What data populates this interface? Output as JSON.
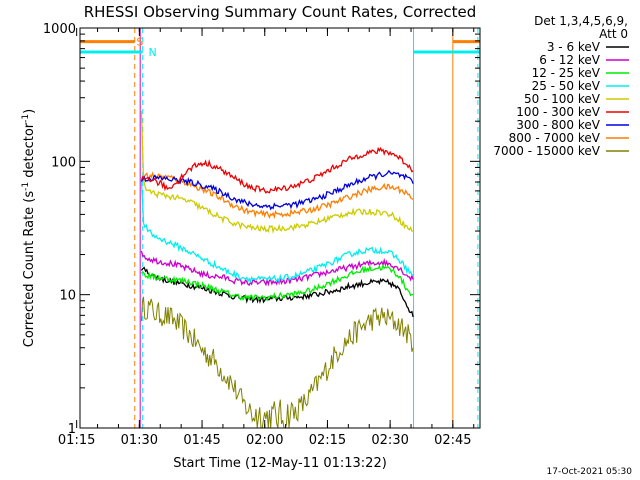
{
  "chart_data": {
    "type": "line",
    "title": "RHESSI Observing Summary Count Rates, Corrected",
    "xlabel": "Start Time (12-May-11 01:13:22)",
    "ylabel": "Corrected Count Rate (s",
    "ylabel_sup": "-1",
    "ylabel_tail": " detector",
    "ylabel_sup2": "-1",
    "ylabel_end": ")",
    "y_scale": "log",
    "ylim": [
      1,
      1000
    ],
    "xlim_minutes": [
      75.8,
      171.5
    ],
    "x_ticks": [
      {
        "label": "01:15",
        "min": 75
      },
      {
        "label": "01:30",
        "min": 90
      },
      {
        "label": "01:45",
        "min": 105
      },
      {
        "label": "02:00",
        "min": 120
      },
      {
        "label": "02:15",
        "min": 135
      },
      {
        "label": "02:30",
        "min": 150
      },
      {
        "label": "02:45",
        "min": 165
      }
    ],
    "y_ticks": [
      {
        "label": "1",
        "value": 1
      },
      {
        "label": "10",
        "value": 10
      },
      {
        "label": "100",
        "value": 100
      },
      {
        "label": "1000",
        "value": 1000
      }
    ],
    "legend_header": [
      "Det 1,3,4,5,6,9,",
      "Att 0"
    ],
    "legend_position": "right",
    "series": [
      {
        "name": "3 - 6 keV",
        "color": "#000000",
        "x": [
          90.5,
          91.5,
          94,
          98,
          102,
          106,
          110,
          113,
          116,
          120,
          124,
          128,
          132,
          136,
          140,
          144,
          148,
          150,
          152,
          154,
          155.5
        ],
        "y": [
          16,
          15,
          13.5,
          12.5,
          11.8,
          11,
          10.2,
          9.6,
          9.3,
          9.2,
          9.4,
          9.6,
          10,
          10.6,
          11.5,
          12.2,
          12.5,
          12.2,
          11,
          8.5,
          6.8
        ]
      },
      {
        "name": "6 - 12 keV",
        "color": "#cc00cc",
        "x": [
          90.5,
          91.5,
          94,
          98,
          102,
          106,
          110,
          113,
          116,
          120,
          124,
          128,
          132,
          136,
          140,
          144,
          148,
          150,
          152,
          154,
          155.5
        ],
        "y": [
          21,
          19,
          18,
          17,
          15.5,
          14,
          13.5,
          12.7,
          12.3,
          12.3,
          12.5,
          13,
          14,
          15,
          16,
          17,
          17.5,
          17,
          16,
          14,
          13
        ]
      },
      {
        "name": "12 - 25 keV",
        "color": "#00ee00",
        "x": [
          90.5,
          91.5,
          94,
          98,
          102,
          106,
          110,
          113,
          116,
          120,
          124,
          128,
          132,
          136,
          140,
          144,
          148,
          150,
          152,
          154,
          155.5
        ],
        "y": [
          15,
          14,
          13.5,
          13,
          12.5,
          11.5,
          10.5,
          9.8,
          9.5,
          9.5,
          9.8,
          10.2,
          11,
          12.5,
          14,
          15.5,
          16,
          15.5,
          14,
          11,
          10
        ]
      },
      {
        "name": "25 - 50 keV",
        "color": "#00eeee",
        "x": [
          90.5,
          91,
          92,
          94,
          98,
          102,
          106,
          110,
          113,
          116,
          120,
          124,
          128,
          132,
          136,
          140,
          144,
          148,
          150,
          152,
          154,
          155.5
        ],
        "y": [
          70,
          35,
          30,
          27,
          24,
          21,
          18,
          15.5,
          14,
          13.2,
          13,
          13.2,
          14,
          15.5,
          17.5,
          20,
          21.5,
          21.5,
          20.5,
          18.5,
          15.5,
          14
        ]
      },
      {
        "name": "50 - 100 keV",
        "color": "#cccc00",
        "x": [
          90.5,
          91,
          92,
          94,
          98,
          102,
          106,
          110,
          113,
          116,
          120,
          124,
          128,
          132,
          136,
          140,
          144,
          148,
          150,
          152,
          154,
          155.5
        ],
        "y": [
          240,
          70,
          60,
          57,
          54,
          50,
          43,
          37,
          34,
          32,
          31,
          31.5,
          32.5,
          34.5,
          38,
          41,
          42,
          41.5,
          40,
          37,
          32,
          30
        ]
      },
      {
        "name": "100 - 300 keV",
        "color": "#ee0000",
        "x": [
          90.5,
          91.5,
          93,
          95,
          97,
          99,
          101,
          103,
          105,
          107,
          110,
          113,
          116,
          120,
          124,
          128,
          132,
          136,
          140,
          144,
          148,
          150,
          152,
          154,
          155.5
        ],
        "y": [
          72,
          75,
          73,
          68,
          62,
          70,
          82,
          92,
          97,
          95,
          85,
          74,
          65,
          60,
          62,
          67,
          75,
          88,
          103,
          115,
          120,
          116,
          108,
          95,
          85
        ]
      },
      {
        "name": "300 - 800 keV",
        "color": "#0000dd",
        "x": [
          90.5,
          91.5,
          94,
          98,
          102,
          106,
          110,
          113,
          116,
          120,
          124,
          128,
          132,
          136,
          140,
          144,
          148,
          150,
          152,
          154,
          155.5
        ],
        "y": [
          72,
          74,
          75,
          73,
          70,
          65,
          58,
          52,
          48,
          46,
          46.5,
          48,
          52,
          58,
          66,
          74,
          80,
          81,
          79,
          75,
          68
        ]
      },
      {
        "name": "800 - 7000 keV",
        "color": "#ff7f00",
        "x": [
          90.5,
          91.5,
          94,
          98,
          102,
          106,
          110,
          113,
          116,
          120,
          124,
          128,
          132,
          136,
          140,
          144,
          148,
          150,
          152,
          154,
          155.5
        ],
        "y": [
          75,
          78,
          78,
          75,
          68,
          60,
          52,
          46,
          42,
          40,
          40,
          41.5,
          44,
          48,
          54,
          60,
          64,
          64,
          62,
          58,
          52
        ]
      },
      {
        "name": "7000 - 15000 keV",
        "color": "#808000",
        "x": [
          90.5,
          91,
          92.5,
          94,
          96,
          98,
          100,
          102,
          104,
          106,
          108,
          110,
          112,
          113.5,
          115,
          117,
          120,
          124,
          127,
          130,
          132,
          134,
          136,
          138,
          140,
          142,
          144,
          146,
          148,
          150,
          152,
          154,
          155.5
        ],
        "y": [
          7.5,
          8,
          8,
          7.2,
          7,
          6.5,
          5.8,
          5,
          4.2,
          3.6,
          3.2,
          2.6,
          2.2,
          1.8,
          1.5,
          1.3,
          1.2,
          1.2,
          1.3,
          1.6,
          2,
          2.5,
          3.2,
          4,
          4.6,
          5.3,
          6,
          6.6,
          6.8,
          6.5,
          6,
          5.2,
          4
        ]
      }
    ],
    "state_bars": [
      {
        "label": "S",
        "color": "#ff7f00",
        "y_value": 790,
        "segments": [
          [
            75.8,
            88.9
          ],
          [
            165,
            171.5
          ]
        ],
        "label_at": 89.3
      },
      {
        "label": "N",
        "color": "#00eeee",
        "y_value": 660,
        "segments": [
          [
            75.8,
            90.8
          ],
          [
            155.6,
            171.5
          ]
        ],
        "label_at": 92.2
      }
    ],
    "vertical_markers": [
      {
        "min": 88.9,
        "color": "#ff7f00",
        "style": "dashed"
      },
      {
        "min": 90.2,
        "color": "#cc00cc",
        "style": "solid"
      },
      {
        "min": 90.8,
        "color": "#00eeee",
        "style": "dashed"
      },
      {
        "min": 155.6,
        "color": "#00eeee",
        "style": "solid"
      },
      {
        "min": 165.0,
        "color": "#ff7f00",
        "style": "solid"
      },
      {
        "min": 171.0,
        "color": "#00eeee",
        "style": "dashed"
      },
      {
        "min": 171.5,
        "color": "#ff7f00",
        "style": "dashed"
      }
    ]
  },
  "footer": {
    "timestamp": "17-Oct-2021 05:30"
  }
}
